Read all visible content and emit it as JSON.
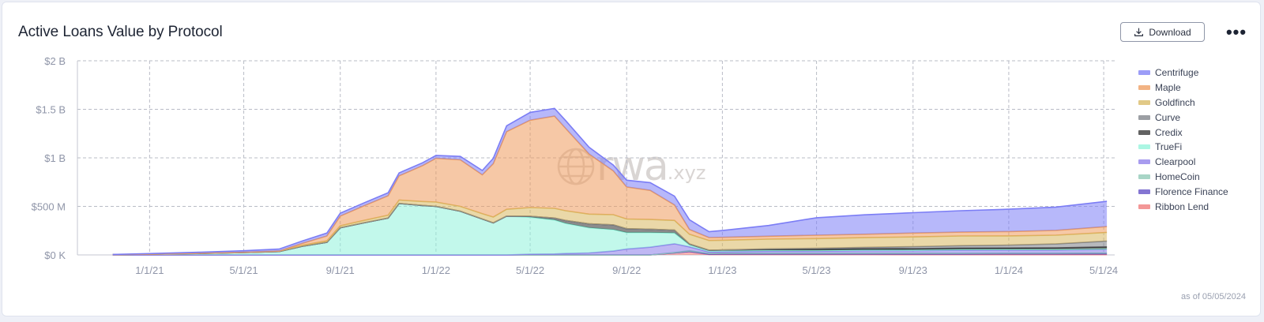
{
  "header": {
    "title": "Active Loans Value by Protocol",
    "download_label": "Download",
    "more_label": "•••"
  },
  "footer": {
    "as_of": "as of 05/05/2024"
  },
  "watermark": {
    "main": "rwa",
    "suffix": ".xyz"
  },
  "colors": {
    "Centrifuge": "#7b7df5",
    "Maple": "#ee9a5c",
    "Goldfinch": "#d8b860",
    "Curve": "#7c7f86",
    "Credix": "#2e2e2e",
    "TrueFi": "#8ff3da",
    "Clearpool": "#8b7bea",
    "HomeCoin": "#8cc7b3",
    "Florence Finance": "#5b47c4",
    "Ribbon Lend": "#f07575"
  },
  "chart_data": {
    "type": "area",
    "stacked": true,
    "title": "Active Loans Value by Protocol",
    "ylabel": "",
    "xlabel": "",
    "ylim": [
      0,
      2000
    ],
    "y_unit": "$M",
    "yticks": [
      0,
      500,
      1000,
      1500,
      2000
    ],
    "ytick_labels": [
      "$0 K",
      "$500 M",
      "$1 B",
      "$1.5 B",
      "$2 B"
    ],
    "xticks": [
      "1/1/21",
      "5/1/21",
      "9/1/21",
      "1/1/22",
      "5/1/22",
      "9/1/22",
      "1/1/23",
      "5/1/23",
      "9/1/23",
      "1/1/24",
      "5/1/24"
    ],
    "xtick_labels": [
      "1/1/21",
      "5/1/21",
      "9/1/21",
      "1/1/22",
      "5/1/22",
      "9/1/22",
      "1/1/23",
      "5/1/23",
      "9/1/23",
      "1/1/24",
      "5/1/24"
    ],
    "xlim": [
      "2020-10-01",
      "2024-05-15"
    ],
    "grid": true,
    "legend_position": "right",
    "x": [
      "2020-11-15",
      "2021-01-01",
      "2021-03-01",
      "2021-05-01",
      "2021-06-15",
      "2021-07-15",
      "2021-08-15",
      "2021-09-01",
      "2021-10-01",
      "2021-11-01",
      "2021-11-15",
      "2021-12-15",
      "2022-01-01",
      "2022-02-01",
      "2022-03-01",
      "2022-03-15",
      "2022-04-01",
      "2022-05-01",
      "2022-06-01",
      "2022-06-15",
      "2022-07-15",
      "2022-08-15",
      "2022-09-01",
      "2022-10-01",
      "2022-11-01",
      "2022-11-20",
      "2022-12-15",
      "2023-01-01",
      "2023-03-01",
      "2023-05-01",
      "2023-07-01",
      "2023-09-01",
      "2023-11-01",
      "2024-01-01",
      "2024-03-01",
      "2024-05-05"
    ],
    "series": [
      {
        "name": "Ribbon Lend",
        "values": [
          0,
          0,
          0,
          0,
          0,
          0,
          0,
          0,
          0,
          0,
          0,
          0,
          0,
          0,
          0,
          0,
          0,
          0,
          0,
          0,
          0,
          0,
          0,
          0,
          20,
          35,
          5,
          5,
          5,
          4,
          4,
          3,
          3,
          3,
          3,
          3
        ]
      },
      {
        "name": "Florence Finance",
        "values": [
          0,
          0,
          0,
          0,
          0,
          0,
          0,
          0,
          0,
          0,
          0,
          0,
          0,
          0,
          0,
          0,
          0,
          0,
          0,
          0,
          0,
          0,
          0,
          0,
          0,
          0,
          3,
          5,
          5,
          6,
          6,
          7,
          7,
          8,
          8,
          10
        ]
      },
      {
        "name": "HomeCoin",
        "values": [
          0,
          0,
          0,
          0,
          0,
          0,
          0,
          0,
          0,
          0,
          0,
          0,
          0,
          0,
          0,
          0,
          0,
          0,
          0,
          0,
          0,
          0,
          0,
          0,
          5,
          8,
          8,
          8,
          8,
          8,
          8,
          8,
          8,
          8,
          8,
          8
        ]
      },
      {
        "name": "Clearpool",
        "values": [
          0,
          0,
          0,
          0,
          0,
          0,
          0,
          0,
          0,
          0,
          0,
          0,
          0,
          0,
          0,
          0,
          0,
          8,
          10,
          15,
          20,
          40,
          60,
          80,
          90,
          40,
          15,
          15,
          20,
          20,
          25,
          25,
          30,
          30,
          30,
          35
        ]
      },
      {
        "name": "TrueFi",
        "values": [
          3,
          8,
          15,
          25,
          35,
          90,
          130,
          280,
          330,
          380,
          530,
          510,
          500,
          450,
          370,
          330,
          400,
          380,
          350,
          310,
          260,
          220,
          170,
          150,
          110,
          20,
          10,
          10,
          10,
          8,
          8,
          7,
          7,
          7,
          6,
          6
        ]
      },
      {
        "name": "Credix",
        "values": [
          0,
          0,
          0,
          0,
          0,
          0,
          0,
          0,
          0,
          0,
          0,
          0,
          0,
          0,
          0,
          0,
          0,
          10,
          20,
          30,
          40,
          50,
          40,
          35,
          30,
          10,
          8,
          8,
          10,
          12,
          12,
          15,
          15,
          15,
          18,
          20
        ]
      },
      {
        "name": "Curve",
        "values": [
          0,
          0,
          0,
          0,
          0,
          0,
          0,
          0,
          0,
          0,
          0,
          0,
          0,
          0,
          0,
          0,
          0,
          0,
          0,
          0,
          0,
          0,
          0,
          0,
          0,
          0,
          0,
          0,
          5,
          10,
          15,
          20,
          25,
          30,
          40,
          60
        ]
      },
      {
        "name": "Goldfinch",
        "values": [
          0,
          1,
          2,
          3,
          5,
          10,
          15,
          20,
          25,
          30,
          35,
          40,
          45,
          50,
          55,
          60,
          70,
          90,
          100,
          100,
          100,
          105,
          100,
          100,
          100,
          100,
          100,
          100,
          100,
          100,
          100,
          100,
          100,
          95,
          90,
          90
        ]
      },
      {
        "name": "Maple",
        "values": [
          0,
          0,
          0,
          0,
          0,
          20,
          50,
          100,
          150,
          200,
          250,
          370,
          450,
          480,
          400,
          550,
          800,
          900,
          950,
          850,
          620,
          450,
          330,
          300,
          160,
          50,
          30,
          30,
          30,
          35,
          35,
          40,
          40,
          45,
          50,
          60
        ]
      },
      {
        "name": "Centrifuge",
        "values": [
          2,
          5,
          10,
          15,
          20,
          25,
          30,
          30,
          30,
          30,
          30,
          30,
          30,
          35,
          45,
          55,
          60,
          80,
          80,
          80,
          70,
          60,
          70,
          80,
          90,
          100,
          60,
          70,
          110,
          180,
          200,
          210,
          220,
          230,
          240,
          260
        ]
      }
    ]
  }
}
